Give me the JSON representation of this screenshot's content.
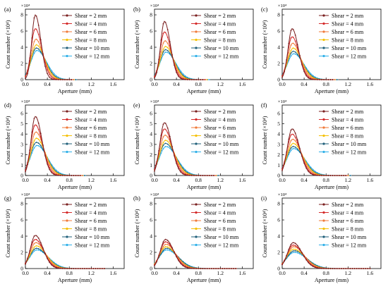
{
  "figure": {
    "panel_labels": [
      "(a)",
      "(b)",
      "(c)",
      "(d)",
      "(e)",
      "(f)",
      "(g)",
      "(h)",
      "(i)"
    ],
    "ylabel": "Count number (×10⁴)",
    "xlabel": "Aperture (mm)",
    "y_multiplier_label": "×10⁴"
  },
  "series_style": [
    {
      "name": "Shear = 2 mm",
      "color": "#7a1f1f"
    },
    {
      "name": "Shear = 4 mm",
      "color": "#d42a2a"
    },
    {
      "name": "Shear = 6 mm",
      "color": "#f07a3a"
    },
    {
      "name": "Shear = 8 mm",
      "color": "#f5c000"
    },
    {
      "name": "Shear = 10 mm",
      "color": "#1f5f7a"
    },
    {
      "name": "Shear = 12 mm",
      "color": "#2fb0e8"
    }
  ],
  "chart_data": [
    {
      "panel": "(a)",
      "type": "line",
      "xlabel": "Aperture (mm)",
      "ylabel": "Count number (×10⁴)",
      "xlim": [
        0,
        1.8
      ],
      "ylim": [
        0,
        8.7
      ],
      "xticks": [
        0.0,
        0.4,
        0.8,
        1.2,
        1.6
      ],
      "yticks": [
        0,
        2,
        4,
        6,
        8
      ],
      "legend": "top-right",
      "series": [
        {
          "name": "Shear = 2 mm",
          "peak_x": 0.18,
          "peak_y": 8.0,
          "width": 0.075,
          "x_end": 0.84
        },
        {
          "name": "Shear = 4 mm",
          "peak_x": 0.18,
          "peak_y": 6.3,
          "width": 0.09,
          "x_end": 0.86
        },
        {
          "name": "Shear = 6 mm",
          "peak_x": 0.19,
          "peak_y": 5.0,
          "width": 0.1,
          "x_end": 0.88
        },
        {
          "name": "Shear = 8 mm",
          "peak_x": 0.2,
          "peak_y": 4.3,
          "width": 0.11,
          "x_end": 0.9
        },
        {
          "name": "Shear = 10 mm",
          "peak_x": 0.2,
          "peak_y": 3.9,
          "width": 0.12,
          "x_end": 0.92
        },
        {
          "name": "Shear = 12 mm",
          "peak_x": 0.21,
          "peak_y": 3.6,
          "width": 0.13,
          "x_end": 0.94
        }
      ]
    },
    {
      "panel": "(b)",
      "type": "line",
      "xlabel": "Aperture (mm)",
      "ylabel": "Count number (×10⁴)",
      "xlim": [
        0,
        1.8
      ],
      "ylim": [
        0,
        8.7
      ],
      "xticks": [
        0.0,
        0.4,
        0.8,
        1.2,
        1.6
      ],
      "yticks": [
        0,
        2,
        4,
        6,
        8
      ],
      "legend": "top-right",
      "series": [
        {
          "name": "Shear = 2 mm",
          "peak_x": 0.18,
          "peak_y": 7.2,
          "width": 0.08,
          "x_end": 0.9
        },
        {
          "name": "Shear = 4 mm",
          "peak_x": 0.18,
          "peak_y": 5.9,
          "width": 0.09,
          "x_end": 0.92
        },
        {
          "name": "Shear = 6 mm",
          "peak_x": 0.19,
          "peak_y": 4.8,
          "width": 0.1,
          "x_end": 0.94
        },
        {
          "name": "Shear = 8 mm",
          "peak_x": 0.2,
          "peak_y": 4.1,
          "width": 0.11,
          "x_end": 0.96
        },
        {
          "name": "Shear = 10 mm",
          "peak_x": 0.2,
          "peak_y": 3.7,
          "width": 0.12,
          "x_end": 0.98
        },
        {
          "name": "Shear = 12 mm",
          "peak_x": 0.21,
          "peak_y": 3.4,
          "width": 0.13,
          "x_end": 1.0
        }
      ]
    },
    {
      "panel": "(c)",
      "type": "line",
      "xlabel": "Aperture (mm)",
      "ylabel": "Count number (×10⁴)",
      "xlim": [
        0,
        1.8
      ],
      "ylim": [
        0,
        8.7
      ],
      "xticks": [
        0.0,
        0.4,
        0.8,
        1.2,
        1.6
      ],
      "yticks": [
        0,
        2,
        4,
        6,
        8
      ],
      "legend": "top-right",
      "series": [
        {
          "name": "Shear = 2 mm",
          "peak_x": 0.18,
          "peak_y": 6.3,
          "width": 0.085,
          "x_end": 0.92
        },
        {
          "name": "Shear = 4 mm",
          "peak_x": 0.18,
          "peak_y": 5.3,
          "width": 0.095,
          "x_end": 0.94
        },
        {
          "name": "Shear = 6 mm",
          "peak_x": 0.19,
          "peak_y": 4.5,
          "width": 0.105,
          "x_end": 0.96
        },
        {
          "name": "Shear = 8 mm",
          "peak_x": 0.2,
          "peak_y": 3.9,
          "width": 0.115,
          "x_end": 0.98
        },
        {
          "name": "Shear = 10 mm",
          "peak_x": 0.2,
          "peak_y": 3.5,
          "width": 0.125,
          "x_end": 1.0
        },
        {
          "name": "Shear = 12 mm",
          "peak_x": 0.21,
          "peak_y": 3.2,
          "width": 0.135,
          "x_end": 1.02
        }
      ]
    },
    {
      "panel": "(d)",
      "type": "line",
      "xlabel": "Aperture (mm)",
      "ylabel": "Count number (×10⁴)",
      "xlim": [
        0,
        1.8
      ],
      "ylim": [
        0,
        6.8
      ],
      "xticks": [
        0.0,
        0.4,
        0.8,
        1.2,
        1.6
      ],
      "yticks": [
        0,
        1,
        2,
        3,
        4,
        5,
        6
      ],
      "legend": "top-right",
      "series": [
        {
          "name": "Shear = 2 mm",
          "peak_x": 0.18,
          "peak_y": 5.7,
          "width": 0.09,
          "x_end": 1.0
        },
        {
          "name": "Shear = 4 mm",
          "peak_x": 0.18,
          "peak_y": 4.9,
          "width": 0.1,
          "x_end": 1.02
        },
        {
          "name": "Shear = 6 mm",
          "peak_x": 0.19,
          "peak_y": 4.2,
          "width": 0.11,
          "x_end": 1.04
        },
        {
          "name": "Shear = 8 mm",
          "peak_x": 0.2,
          "peak_y": 3.6,
          "width": 0.12,
          "x_end": 1.06
        },
        {
          "name": "Shear = 10 mm",
          "peak_x": 0.2,
          "peak_y": 3.2,
          "width": 0.13,
          "x_end": 1.08
        },
        {
          "name": "Shear = 12 mm",
          "peak_x": 0.21,
          "peak_y": 2.9,
          "width": 0.14,
          "x_end": 1.1
        }
      ]
    },
    {
      "panel": "(e)",
      "type": "line",
      "xlabel": "Aperture (mm)",
      "ylabel": "Count number (×10⁴)",
      "xlim": [
        0,
        1.8
      ],
      "ylim": [
        0,
        6.8
      ],
      "xticks": [
        0.0,
        0.4,
        0.8,
        1.2,
        1.6
      ],
      "yticks": [
        0,
        1,
        2,
        3,
        4,
        5,
        6
      ],
      "legend": "top-right",
      "series": [
        {
          "name": "Shear = 2 mm",
          "peak_x": 0.18,
          "peak_y": 5.1,
          "width": 0.095,
          "x_end": 1.08
        },
        {
          "name": "Shear = 4 mm",
          "peak_x": 0.18,
          "peak_y": 4.5,
          "width": 0.105,
          "x_end": 1.1
        },
        {
          "name": "Shear = 6 mm",
          "peak_x": 0.19,
          "peak_y": 3.9,
          "width": 0.115,
          "x_end": 1.12
        },
        {
          "name": "Shear = 8 mm",
          "peak_x": 0.2,
          "peak_y": 3.4,
          "width": 0.125,
          "x_end": 1.14
        },
        {
          "name": "Shear = 10 mm",
          "peak_x": 0.2,
          "peak_y": 3.1,
          "width": 0.135,
          "x_end": 1.16
        },
        {
          "name": "Shear = 12 mm",
          "peak_x": 0.21,
          "peak_y": 2.8,
          "width": 0.145,
          "x_end": 1.18
        }
      ]
    },
    {
      "panel": "(f)",
      "type": "line",
      "xlabel": "Aperture (mm)",
      "ylabel": "Count number (×10⁴)",
      "xlim": [
        0,
        1.8
      ],
      "ylim": [
        0,
        6.8
      ],
      "xticks": [
        0.0,
        0.4,
        0.8,
        1.2,
        1.6
      ],
      "yticks": [
        0,
        1,
        2,
        3,
        4,
        5,
        6
      ],
      "legend": "top-right",
      "series": [
        {
          "name": "Shear = 2 mm",
          "peak_x": 0.18,
          "peak_y": 4.5,
          "width": 0.1,
          "x_end": 1.16
        },
        {
          "name": "Shear = 4 mm",
          "peak_x": 0.18,
          "peak_y": 4.0,
          "width": 0.11,
          "x_end": 1.18
        },
        {
          "name": "Shear = 6 mm",
          "peak_x": 0.19,
          "peak_y": 3.5,
          "width": 0.12,
          "x_end": 1.2
        },
        {
          "name": "Shear = 8 mm",
          "peak_x": 0.2,
          "peak_y": 3.1,
          "width": 0.13,
          "x_end": 1.22
        },
        {
          "name": "Shear = 10 mm",
          "peak_x": 0.2,
          "peak_y": 2.8,
          "width": 0.14,
          "x_end": 1.24
        },
        {
          "name": "Shear = 12 mm",
          "peak_x": 0.21,
          "peak_y": 2.6,
          "width": 0.15,
          "x_end": 1.26
        }
      ]
    },
    {
      "panel": "(g)",
      "type": "line",
      "xlabel": "Aperture (mm)",
      "ylabel": "Count number (×10⁴)",
      "xlim": [
        0,
        1.8
      ],
      "ylim": [
        0,
        8.7
      ],
      "xticks": [
        0.0,
        0.4,
        0.8,
        1.2,
        1.6
      ],
      "yticks": [
        0,
        2,
        4,
        6,
        8
      ],
      "legend": "top-right",
      "series": [
        {
          "name": "Shear = 2 mm",
          "peak_x": 0.18,
          "peak_y": 4.1,
          "width": 0.105,
          "x_end": 1.44
        },
        {
          "name": "Shear = 4 mm",
          "peak_x": 0.18,
          "peak_y": 3.6,
          "width": 0.115,
          "x_end": 1.44
        },
        {
          "name": "Shear = 6 mm",
          "peak_x": 0.19,
          "peak_y": 3.2,
          "width": 0.125,
          "x_end": 1.44
        },
        {
          "name": "Shear = 8 mm",
          "peak_x": 0.2,
          "peak_y": 2.8,
          "width": 0.135,
          "x_end": 1.44
        },
        {
          "name": "Shear = 10 mm",
          "peak_x": 0.2,
          "peak_y": 2.5,
          "width": 0.145,
          "x_end": 1.44
        },
        {
          "name": "Shear = 12 mm",
          "peak_x": 0.21,
          "peak_y": 2.3,
          "width": 0.155,
          "x_end": 1.44
        }
      ]
    },
    {
      "panel": "(h)",
      "type": "line",
      "xlabel": "Aperture (mm)",
      "ylabel": "Count number (×10⁴)",
      "xlim": [
        0,
        1.8
      ],
      "ylim": [
        0,
        8.7
      ],
      "xticks": [
        0.0,
        0.4,
        0.8,
        1.2,
        1.6
      ],
      "yticks": [
        0,
        2,
        4,
        6,
        8
      ],
      "legend": "top-right",
      "series": [
        {
          "name": "Shear = 2 mm",
          "peak_x": 0.2,
          "peak_y": 3.6,
          "width": 0.11,
          "x_end": 1.5
        },
        {
          "name": "Shear = 4 mm",
          "peak_x": 0.2,
          "peak_y": 3.3,
          "width": 0.12,
          "x_end": 1.5
        },
        {
          "name": "Shear = 6 mm",
          "peak_x": 0.21,
          "peak_y": 3.0,
          "width": 0.13,
          "x_end": 1.5
        },
        {
          "name": "Shear = 8 mm",
          "peak_x": 0.21,
          "peak_y": 2.7,
          "width": 0.14,
          "x_end": 1.5
        },
        {
          "name": "Shear = 10 mm",
          "peak_x": 0.22,
          "peak_y": 2.5,
          "width": 0.15,
          "x_end": 1.5
        },
        {
          "name": "Shear = 12 mm",
          "peak_x": 0.22,
          "peak_y": 2.3,
          "width": 0.16,
          "x_end": 1.5
        }
      ]
    },
    {
      "panel": "(i)",
      "type": "line",
      "xlabel": "Aperture (mm)",
      "ylabel": "Count number (×10⁴)",
      "xlim": [
        0,
        1.8
      ],
      "ylim": [
        0,
        8.7
      ],
      "xticks": [
        0.0,
        0.4,
        0.8,
        1.2,
        1.6
      ],
      "yticks": [
        0,
        2,
        4,
        6,
        8
      ],
      "legend": "top-right",
      "series": [
        {
          "name": "Shear = 2 mm",
          "peak_x": 0.2,
          "peak_y": 3.2,
          "width": 0.12,
          "x_end": 1.6
        },
        {
          "name": "Shear = 4 mm",
          "peak_x": 0.2,
          "peak_y": 2.9,
          "width": 0.13,
          "x_end": 1.6
        },
        {
          "name": "Shear = 6 mm",
          "peak_x": 0.21,
          "peak_y": 2.7,
          "width": 0.14,
          "x_end": 1.6
        },
        {
          "name": "Shear = 8 mm",
          "peak_x": 0.21,
          "peak_y": 2.4,
          "width": 0.15,
          "x_end": 1.6
        },
        {
          "name": "Shear = 10 mm",
          "peak_x": 0.22,
          "peak_y": 2.2,
          "width": 0.16,
          "x_end": 1.6
        },
        {
          "name": "Shear = 12 mm",
          "peak_x": 0.22,
          "peak_y": 2.0,
          "width": 0.17,
          "x_end": 1.6
        }
      ]
    }
  ]
}
